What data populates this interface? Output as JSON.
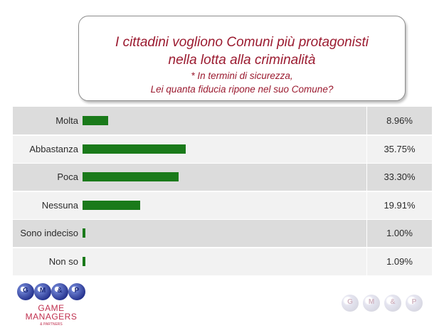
{
  "header": {
    "title_line1": "I cittadini vogliono Comuni più protagonisti",
    "title_line2": "nella lotta alla criminalità",
    "question_line1": "* In termini di sicurezza,",
    "question_line2": "Lei quanta fiducia ripone nel suo Comune?"
  },
  "chart_data": {
    "type": "bar",
    "orientation": "horizontal",
    "categories": [
      "Molta",
      "Abbastanza",
      "Poca",
      "Nessuna",
      "Sono indeciso",
      "Non so"
    ],
    "values": [
      8.96,
      35.75,
      33.3,
      19.91,
      1.0,
      1.09
    ],
    "value_labels": [
      "8.96%",
      "35.75%",
      "33.30%",
      "19.91%",
      "1.00%",
      "1.09%"
    ],
    "bar_color": "#1a7a1a"
  },
  "logo": {
    "letters": [
      "G",
      "M",
      "&",
      "P"
    ],
    "line1": "GAME",
    "line2": "MANAGERS",
    "line3": "& PARTNERS",
    "accent_color": "#c0304f"
  },
  "watermark": {
    "letters": [
      "G",
      "M",
      "&",
      "P"
    ]
  }
}
